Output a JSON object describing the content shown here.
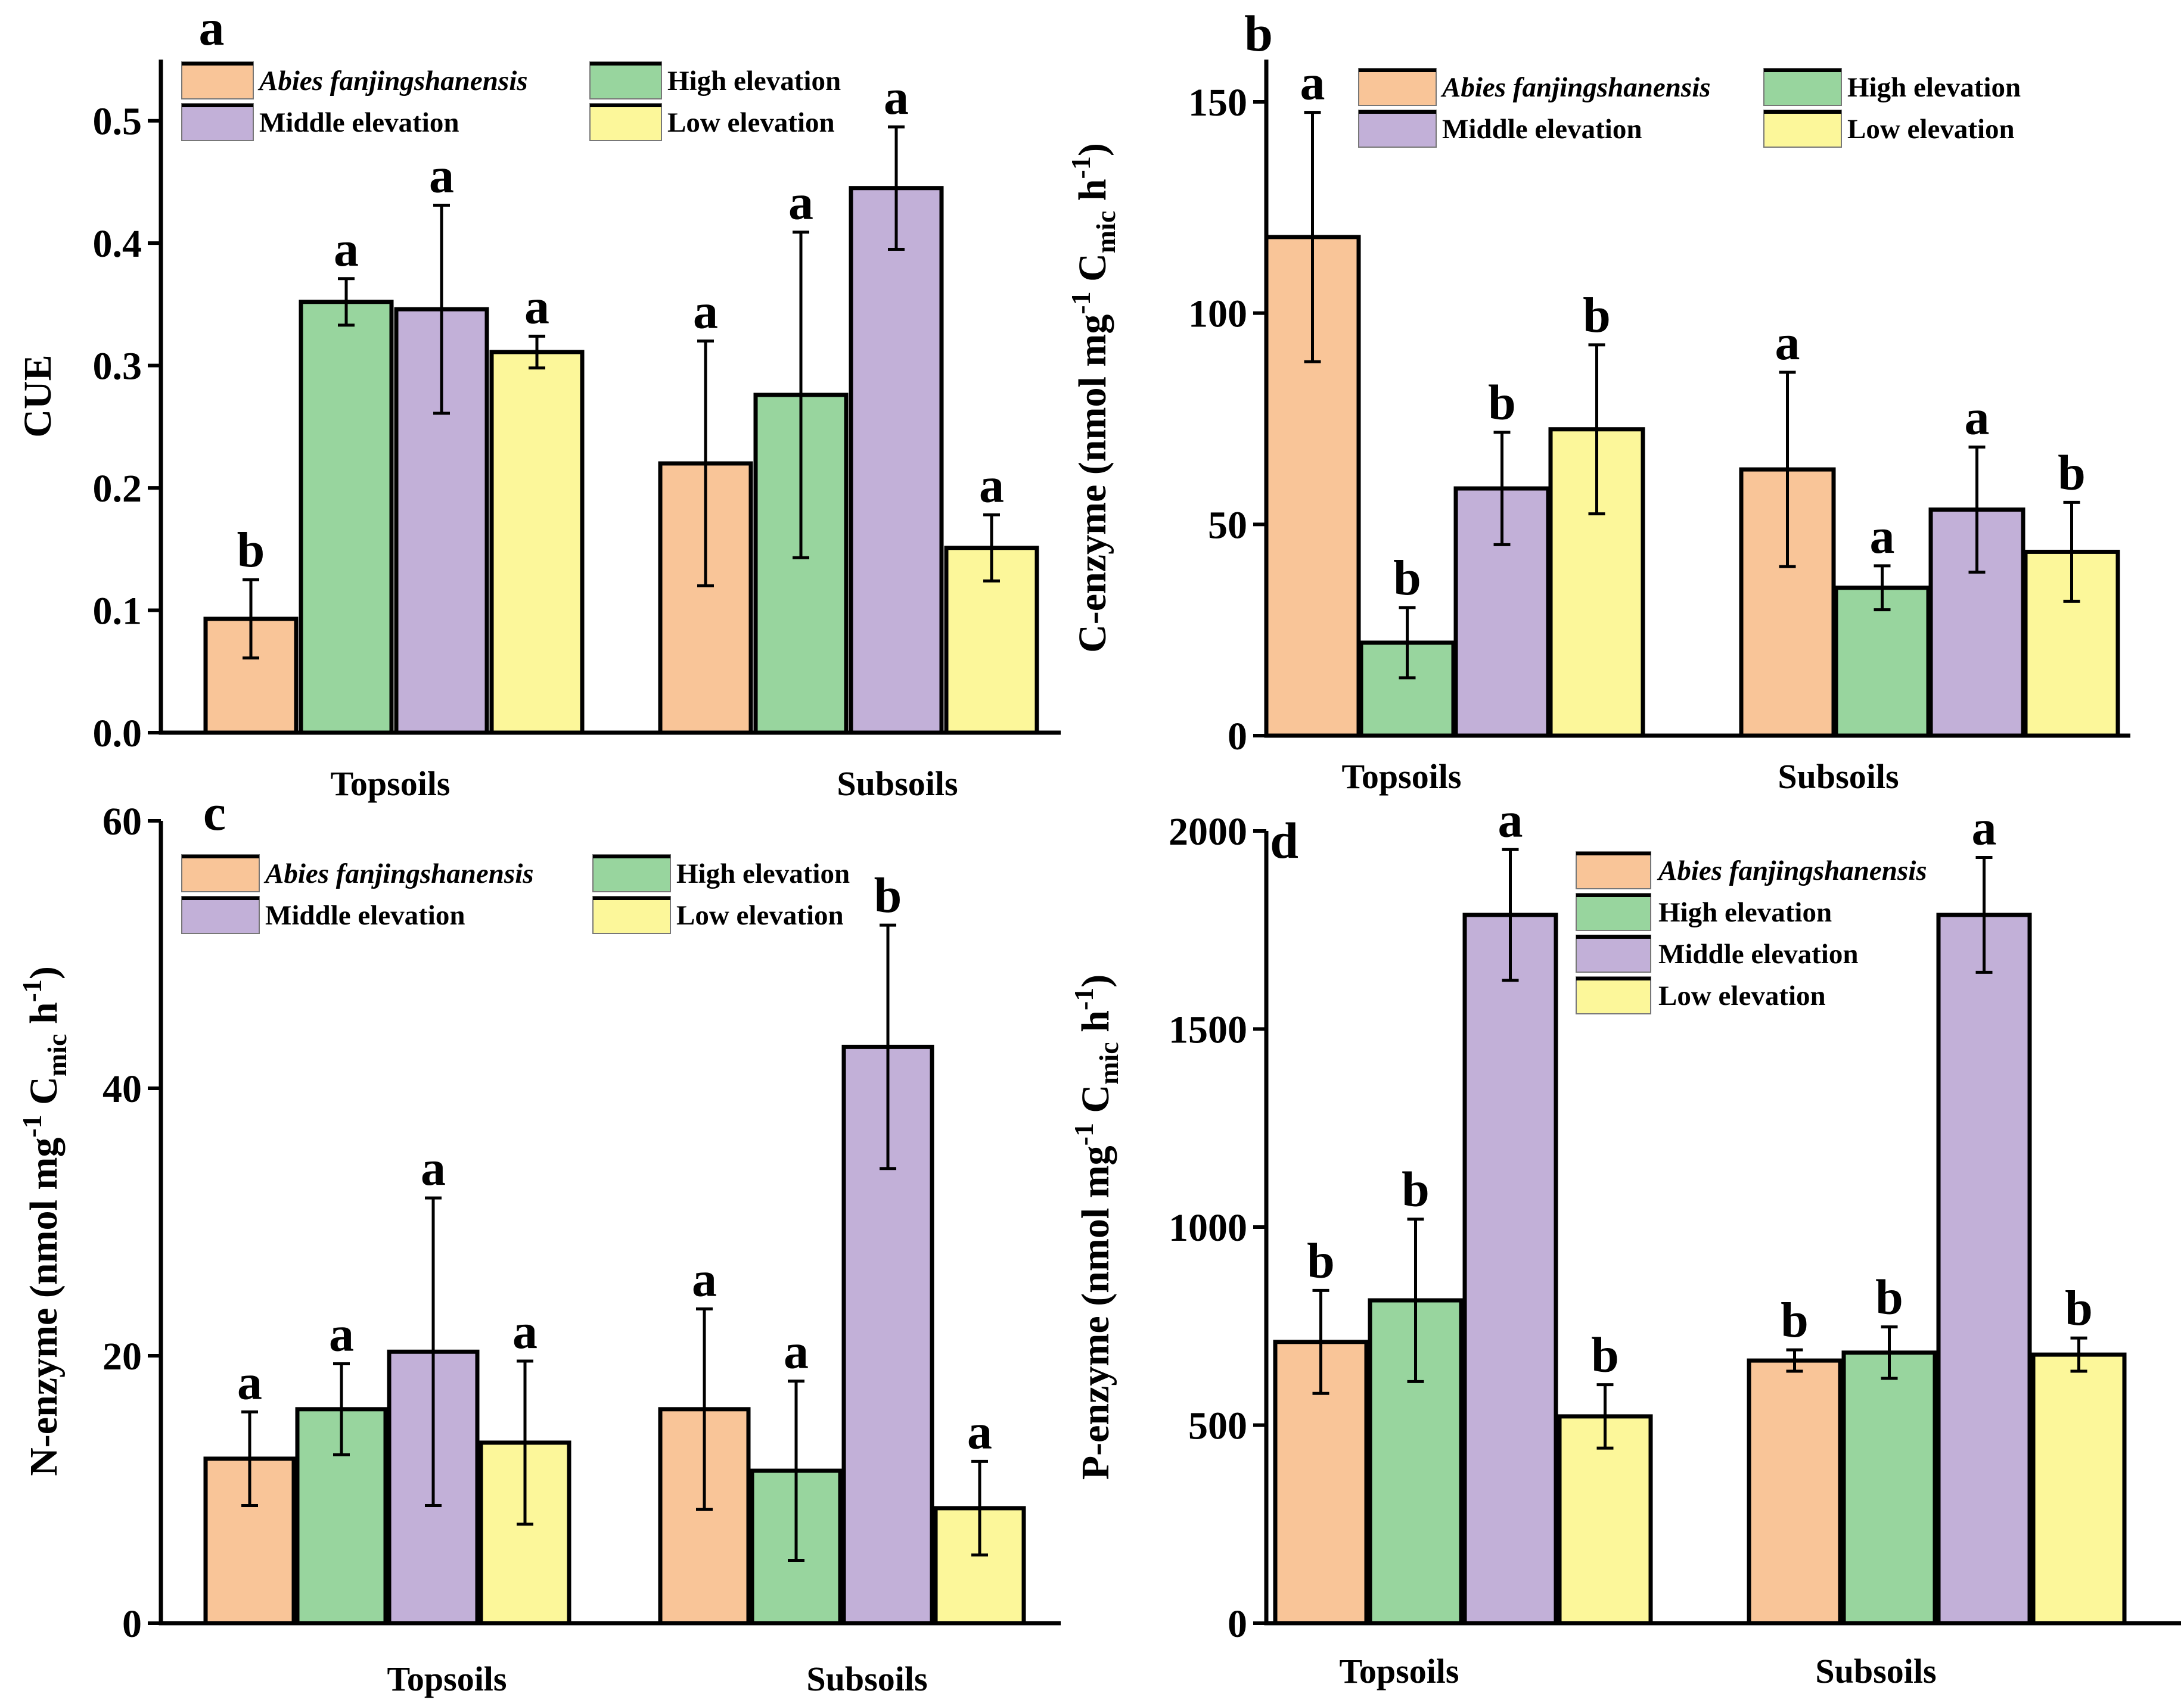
{
  "colors": {
    "Abies fanjingshanensis": "#f9c598",
    "High elevation": "#98d59e",
    "Middle elevation": "#c2b0d8",
    "Low elevation": "#fcf79a"
  },
  "chart_data": [
    {
      "type": "bar",
      "panel_label": "a",
      "title": "",
      "xlabel": "",
      "ylabel": "CUE",
      "ylim": [
        0,
        0.55
      ],
      "yticks": [
        0.0,
        0.1,
        0.2,
        0.3,
        0.4,
        0.5
      ],
      "ytick_labels": [
        "0.0",
        "0.1",
        "0.2",
        "0.3",
        "0.4",
        "0.5"
      ],
      "categories": [
        "Topsoils",
        "Subsoils"
      ],
      "legend": [
        "Abies fanjingshanensis",
        "High elevation",
        "Middle elevation",
        "Low elevation"
      ],
      "legend_layout": "two-column",
      "legend_position": "top-left",
      "series": [
        {
          "name": "Abies fanjingshanensis",
          "values": [
            0.093,
            0.22
          ],
          "errors": [
            0.032,
            0.1
          ],
          "letters": [
            "b",
            "a"
          ]
        },
        {
          "name": "High elevation",
          "values": [
            0.352,
            0.276
          ],
          "errors": [
            0.019,
            0.133
          ],
          "letters": [
            "a",
            "a"
          ]
        },
        {
          "name": "Middle elevation",
          "values": [
            0.346,
            0.445
          ],
          "errors": [
            0.085,
            0.05
          ],
          "letters": [
            "a",
            "a"
          ]
        },
        {
          "name": "Low elevation",
          "values": [
            0.311,
            0.151
          ],
          "errors": [
            0.013,
            0.027
          ],
          "letters": [
            "a",
            "a"
          ]
        }
      ]
    },
    {
      "type": "bar",
      "panel_label": "b",
      "title": "",
      "xlabel": "",
      "ylabel": "C-enzyme (nmol mg-1 Cmic h-1)",
      "ylabel_parts": [
        "C-enzyme (nmol mg",
        "-1",
        " C",
        "mic",
        " h",
        "-1",
        ")"
      ],
      "ylim": [
        0,
        160
      ],
      "yticks": [
        0,
        50,
        100,
        150
      ],
      "ytick_labels": [
        "0",
        "50",
        "100",
        "150"
      ],
      "categories": [
        "Topsoils",
        "Subsoils"
      ],
      "legend": [
        "Abies fanjingshanensis",
        "High elevation",
        "Middle elevation",
        "Low elevation"
      ],
      "legend_layout": "two-column",
      "legend_position": "top-right",
      "series": [
        {
          "name": "Abies fanjingshanensis",
          "values": [
            118,
            63
          ],
          "errors": [
            29.5,
            23
          ],
          "letters": [
            "a",
            "a"
          ]
        },
        {
          "name": "High elevation",
          "values": [
            22,
            35
          ],
          "errors": [
            8.3,
            5.2
          ],
          "letters": [
            "b",
            "a"
          ]
        },
        {
          "name": "Middle elevation",
          "values": [
            58.5,
            53.5
          ],
          "errors": [
            13.3,
            14.8
          ],
          "letters": [
            "b",
            "a"
          ]
        },
        {
          "name": "Low elevation",
          "values": [
            72.5,
            43.5
          ],
          "errors": [
            20,
            11.7
          ],
          "letters": [
            "b",
            "b"
          ]
        }
      ]
    },
    {
      "type": "bar",
      "panel_label": "c",
      "title": "",
      "xlabel": "",
      "ylabel": "N-enzyme (nmol mg-1 Cmic h-1)",
      "ylabel_parts": [
        "N-enzyme (nmol mg",
        "-1",
        " C",
        "mic",
        " h",
        "-1",
        ")"
      ],
      "ylim": [
        0,
        60
      ],
      "yticks": [
        0,
        20,
        40,
        60
      ],
      "ytick_labels": [
        "0",
        "20",
        "40",
        "60"
      ],
      "categories": [
        "Topsoils",
        "Subsoils"
      ],
      "legend": [
        "Abies fanjingshanensis",
        "High elevation",
        "Middle elevation",
        "Low elevation"
      ],
      "legend_layout": "two-column",
      "legend_position": "top",
      "series": [
        {
          "name": "Abies fanjingshanensis",
          "values": [
            12.3,
            16
          ],
          "errors": [
            3.5,
            7.5
          ],
          "letters": [
            "a",
            "a"
          ]
        },
        {
          "name": "High elevation",
          "values": [
            16,
            11.4
          ],
          "errors": [
            3.4,
            6.7
          ],
          "letters": [
            "a",
            "a"
          ]
        },
        {
          "name": "Middle elevation",
          "values": [
            20.3,
            43.1
          ],
          "errors": [
            11.5,
            9.1
          ],
          "letters": [
            "a",
            "b"
          ]
        },
        {
          "name": "Low elevation",
          "values": [
            13.5,
            8.6
          ],
          "errors": [
            6.1,
            3.5
          ],
          "letters": [
            "a",
            "a"
          ]
        }
      ]
    },
    {
      "type": "bar",
      "panel_label": "d",
      "title": "",
      "xlabel": "",
      "ylabel": "P-enzyme (nmol mg-1 Cmic h-1)",
      "ylabel_parts": [
        "P-enzyme (nmol mg",
        "-1",
        " C",
        "mic",
        " h",
        "-1",
        ")"
      ],
      "ylim": [
        0,
        2000
      ],
      "yticks": [
        0,
        500,
        1000,
        1500,
        2000
      ],
      "ytick_labels": [
        "0",
        "500",
        "1000",
        "1500",
        "2000"
      ],
      "categories": [
        "Topsoils",
        "Subsoils"
      ],
      "legend": [
        "Abies fanjingshanensis",
        "High elevation",
        "Middle elevation",
        "Low elevation"
      ],
      "legend_layout": "one-column",
      "legend_position": "top-center",
      "series": [
        {
          "name": "Abies fanjingshanensis",
          "values": [
            710,
            663
          ],
          "errors": [
            130,
            27
          ],
          "letters": [
            "b",
            "b"
          ]
        },
        {
          "name": "High elevation",
          "values": [
            815,
            683
          ],
          "errors": [
            205,
            65
          ],
          "letters": [
            "b",
            "b"
          ]
        },
        {
          "name": "Middle elevation",
          "values": [
            1788,
            1788
          ],
          "errors": [
            165,
            145
          ],
          "letters": [
            "a",
            "a"
          ]
        },
        {
          "name": "Low elevation",
          "values": [
            522,
            678
          ],
          "errors": [
            80,
            42
          ],
          "letters": [
            "b",
            "b"
          ]
        }
      ]
    }
  ]
}
